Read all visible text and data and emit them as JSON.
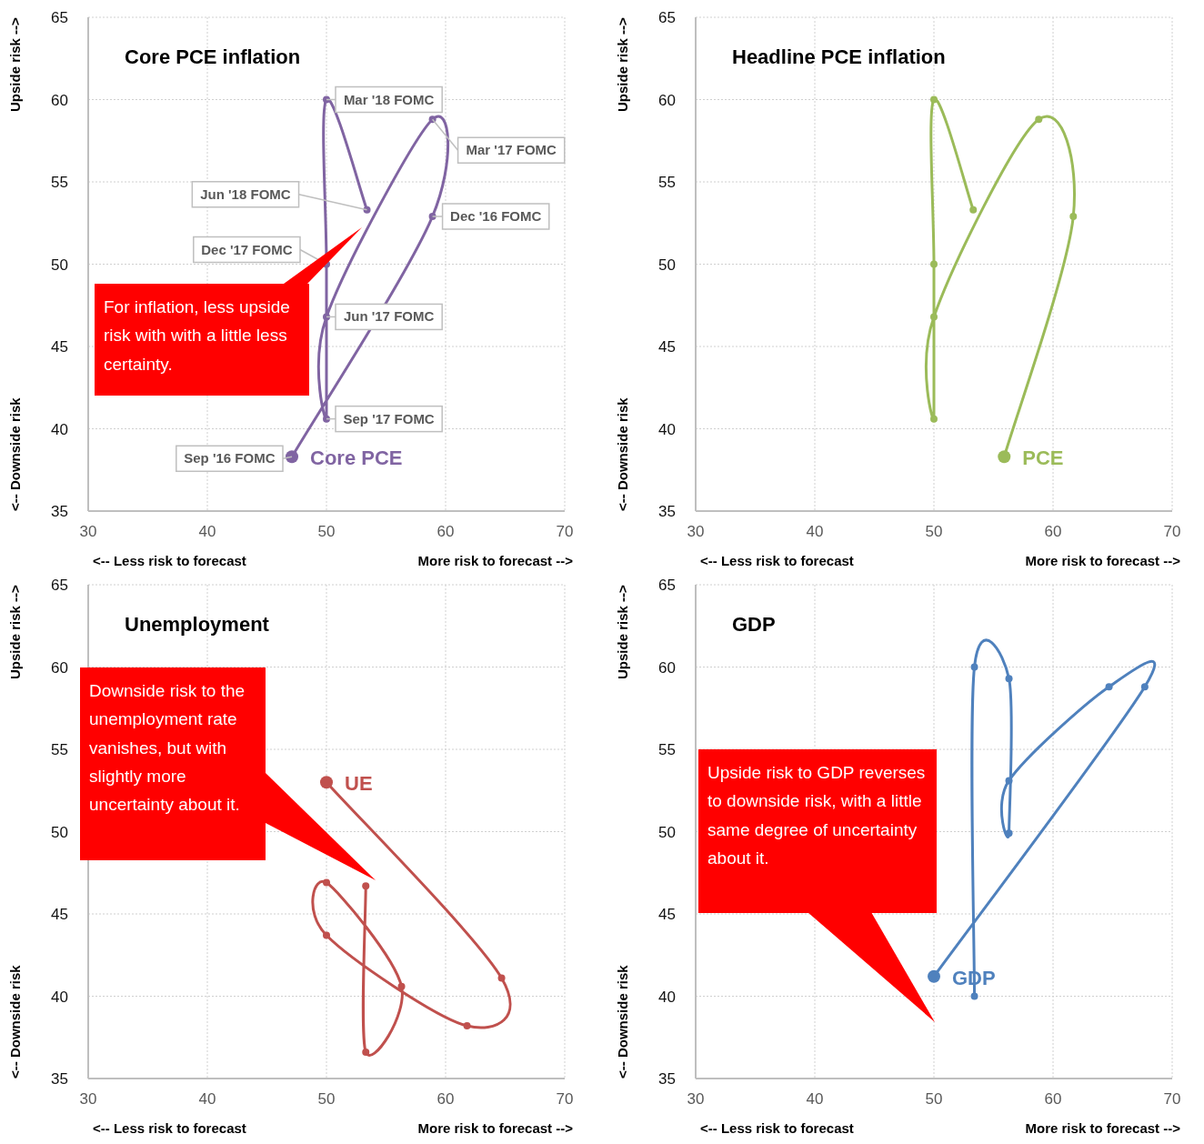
{
  "chart_data": [
    {
      "type": "line",
      "title": "Core PCE inflation",
      "xlabel": "<-- Less risk to forecast    More risk to forecast -->",
      "ylabel": "<-- Downside risk    Upside risk -->",
      "xlim": [
        30,
        70
      ],
      "xticks": [
        30,
        40,
        50,
        60,
        70
      ],
      "ylim": [
        35,
        65
      ],
      "yticks": [
        35,
        40,
        45,
        50,
        55,
        60,
        65
      ],
      "grid": true,
      "marker": "circle",
      "series": [
        {
          "name": "Core PCE",
          "color": "#8064a2",
          "x": [
            47.1,
            58.9,
            58.9,
            50.0,
            50.0,
            50.0,
            50.0,
            53.4
          ],
          "values": [
            38.3,
            52.9,
            58.8,
            46.8,
            40.6,
            50.0,
            60.0,
            53.3
          ]
        }
      ],
      "annotations": [
        {
          "text": "Sep '16 FOMC",
          "x": 47.1,
          "y": 38.3
        },
        {
          "text": "Dec '16 FOMC",
          "x": 58.9,
          "y": 52.9
        },
        {
          "text": "Mar '17 FOMC",
          "x": 58.9,
          "y": 58.8
        },
        {
          "text": "Jun '17 FOMC",
          "x": 50.0,
          "y": 46.8
        },
        {
          "text": "Sep '17 FOMC",
          "x": 50.0,
          "y": 40.6
        },
        {
          "text": "Dec '17 FOMC",
          "x": 50.0,
          "y": 50.0
        },
        {
          "text": "Mar '18 FOMC",
          "x": 50.0,
          "y": 60.0
        },
        {
          "text": "Jun '18 FOMC",
          "x": 53.4,
          "y": 53.3
        },
        "For inflation, less upside risk with with a little less certainty."
      ]
    },
    {
      "type": "line",
      "title": "Headline PCE inflation",
      "xlabel": "<-- Less risk to forecast    More risk to forecast -->",
      "ylabel": "<-- Downside risk    Upside risk -->",
      "xlim": [
        30,
        70
      ],
      "xticks": [
        30,
        40,
        50,
        60,
        70
      ],
      "ylim": [
        35,
        65
      ],
      "yticks": [
        35,
        40,
        45,
        50,
        55,
        60,
        65
      ],
      "grid": true,
      "marker": "circle",
      "series": [
        {
          "name": "PCE",
          "color": "#9bbb59",
          "x": [
            55.9,
            61.7,
            58.8,
            50.0,
            50.0,
            50.0,
            50.0,
            53.3
          ],
          "values": [
            38.3,
            52.9,
            58.8,
            46.8,
            40.6,
            50.0,
            60.0,
            53.3
          ]
        }
      ]
    },
    {
      "type": "line",
      "title": "Unemployment",
      "xlabel": "<-- Less risk to forecast    More risk to forecast -->",
      "ylabel": "<-- Downside risk    Upside risk -->",
      "xlim": [
        30,
        70
      ],
      "xticks": [
        30,
        40,
        50,
        60,
        70
      ],
      "ylim": [
        35,
        65
      ],
      "yticks": [
        35,
        40,
        45,
        50,
        55,
        60,
        65
      ],
      "grid": true,
      "marker": "circle",
      "series": [
        {
          "name": "UE",
          "color": "#c0504d",
          "x": [
            50.0,
            64.7,
            61.8,
            50.0,
            50.0,
            56.3,
            53.3,
            53.3
          ],
          "values": [
            53.0,
            41.1,
            38.2,
            43.7,
            46.9,
            40.6,
            36.6,
            46.7
          ]
        }
      ],
      "annotations": [
        "Downside risk to the unemployment rate vanishes, but with slightly more uncertainty about it."
      ]
    },
    {
      "type": "line",
      "title": "GDP",
      "xlabel": "<-- Less risk to forecast    More risk to forecast -->",
      "ylabel": "<-- Downside risk    Upside risk -->",
      "xlim": [
        30,
        70
      ],
      "xticks": [
        30,
        40,
        50,
        60,
        70
      ],
      "ylim": [
        35,
        65
      ],
      "yticks": [
        35,
        40,
        45,
        50,
        55,
        60,
        65
      ],
      "grid": true,
      "marker": "circle",
      "series": [
        {
          "name": "GDP",
          "color": "#4f81bd",
          "x": [
            50.0,
            67.7,
            64.7,
            56.3,
            56.3,
            56.3,
            53.4,
            53.4
          ],
          "values": [
            41.2,
            58.8,
            58.8,
            53.1,
            49.9,
            59.3,
            60.0,
            40.0
          ]
        }
      ],
      "annotations": [
        "Upside risk to GDP reverses to downside risk, with a little same degree of  uncertainty about it."
      ]
    }
  ]
}
